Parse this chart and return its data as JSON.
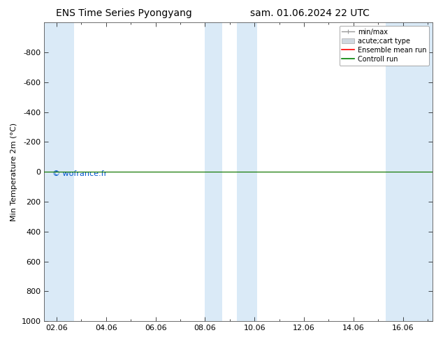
{
  "title_left": "ENS Time Series Pyongyang",
  "title_right": "sam. 01.06.2024 22 UTC",
  "ylabel": "Min Temperature 2m (°C)",
  "ylim_top": -1000,
  "ylim_bottom": 1000,
  "xlim_left": 1.5,
  "xlim_right": 17.2,
  "xtick_labels": [
    "02.06",
    "04.06",
    "06.06",
    "08.06",
    "10.06",
    "12.06",
    "14.06",
    "16.06"
  ],
  "xtick_positions": [
    2,
    4,
    6,
    8,
    10,
    12,
    14,
    16
  ],
  "ytick_values": [
    -800,
    -600,
    -400,
    -200,
    0,
    200,
    400,
    600,
    800,
    1000
  ],
  "background_color": "#ffffff",
  "plot_bg_color": "#ffffff",
  "shaded_bands": [
    [
      1.5,
      2.7
    ],
    [
      8.0,
      8.7
    ],
    [
      9.3,
      10.1
    ],
    [
      15.3,
      17.2
    ]
  ],
  "band_color": "#daeaf7",
  "ensemble_mean_color": "#ff0000",
  "control_run_color": "#008000",
  "hline_y": 0,
  "watermark": "© wofrance.fr",
  "watermark_color": "#0055cc",
  "watermark_fontsize": 8,
  "legend_labels": [
    "min/max",
    "acute;cart type",
    "Ensemble mean run",
    "Controll run"
  ],
  "title_fontsize": 10,
  "axis_label_fontsize": 8,
  "tick_fontsize": 8,
  "legend_fontsize": 7
}
